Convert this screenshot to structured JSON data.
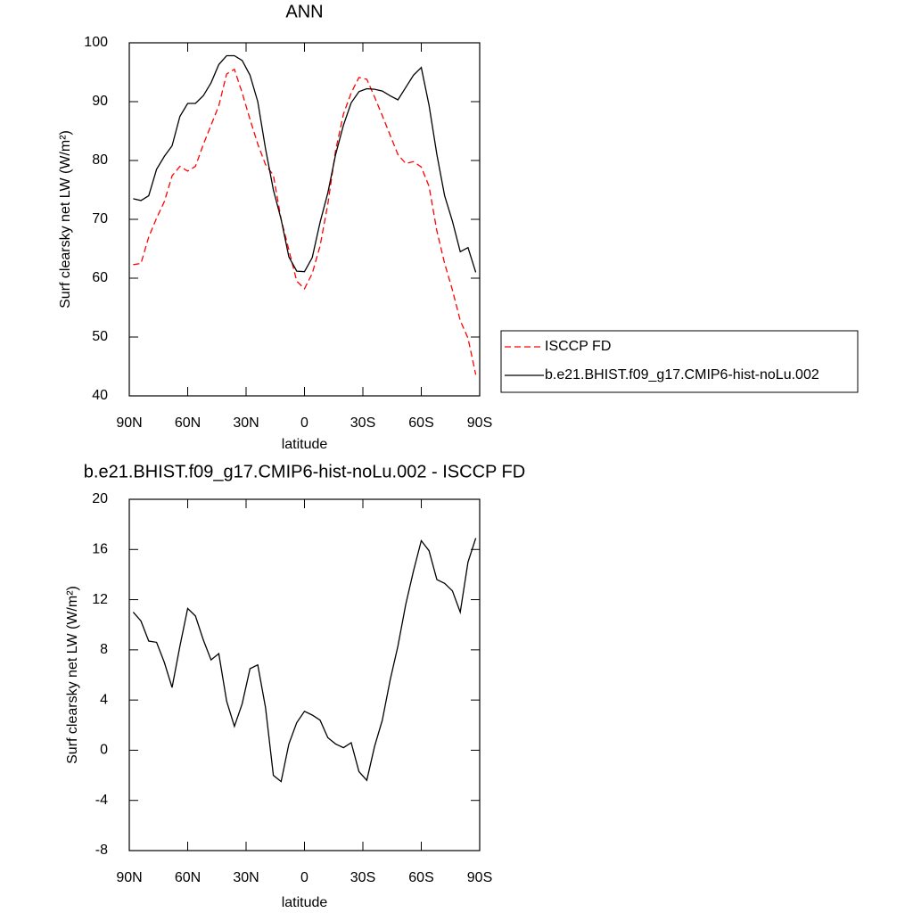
{
  "chart_data": [
    {
      "type": "line",
      "title": "ANN",
      "xlabel": "latitude",
      "ylabel": "Surf clearsky net LW (W/m²)",
      "x": [
        88,
        84,
        80,
        76,
        72,
        68,
        64,
        60,
        56,
        52,
        48,
        44,
        40,
        36,
        32,
        28,
        24,
        20,
        16,
        12,
        8,
        4,
        0,
        -4,
        -8,
        -12,
        -16,
        -20,
        -24,
        -28,
        -32,
        -36,
        -40,
        -44,
        -48,
        -52,
        -56,
        -60,
        -64,
        -68,
        -72,
        -76,
        -80,
        -84,
        -88
      ],
      "xlim": [
        90,
        -90
      ],
      "xticks": [
        {
          "value": 90,
          "label": "90N"
        },
        {
          "value": 60,
          "label": "60N"
        },
        {
          "value": 30,
          "label": "30N"
        },
        0,
        {
          "value": -30,
          "label": "30S"
        },
        {
          "value": -60,
          "label": "60S"
        },
        {
          "value": -90,
          "label": "90S"
        }
      ],
      "ylim": [
        40,
        100
      ],
      "yticks": [
        40,
        50,
        60,
        70,
        80,
        90,
        100
      ],
      "legend": "right",
      "series": [
        {
          "name": "ISCCP FD",
          "color": "#ff0000",
          "dash": true,
          "values": [
            62.3,
            62.5,
            67,
            70.2,
            73,
            77.4,
            79,
            78.2,
            79,
            82.7,
            86,
            89.3,
            94.7,
            95.5,
            91.5,
            87,
            82.8,
            79.3,
            77.5,
            70,
            64.8,
            59.5,
            58.2,
            60.8,
            65.5,
            72.6,
            81.7,
            87.9,
            91.5,
            94.1,
            93.8,
            90.8,
            87.6,
            84.3,
            81,
            79.5,
            79.8,
            78.9,
            75.6,
            68,
            62.5,
            58,
            52.8,
            49.8,
            43.6
          ]
        },
        {
          "name": "b.e21.BHIST.f09_g17.CMIP6-hist-noLu.002",
          "color": "#000000",
          "dash": false,
          "values": [
            73.5,
            73.2,
            74,
            78.5,
            80.7,
            82.5,
            87.5,
            89.7,
            89.7,
            91,
            93.2,
            96.3,
            97.8,
            97.8,
            97,
            94.5,
            90,
            82,
            75,
            70,
            63.6,
            61.2,
            61.1,
            63.5,
            69.5,
            74.5,
            81,
            86,
            89.8,
            91.7,
            92.2,
            92.1,
            91.8,
            91,
            90.3,
            92.4,
            94.5,
            95.8,
            89.4,
            81,
            74,
            69.7,
            64.5,
            65.2,
            61
          ]
        }
      ]
    },
    {
      "type": "line",
      "title": "b.e21.BHIST.f09_g17.CMIP6-hist-noLu.002 - ISCCP FD",
      "xlabel": "latitude",
      "ylabel": "Surf clearsky net LW (W/m²)",
      "x": [
        88,
        84,
        80,
        76,
        72,
        68,
        64,
        60,
        56,
        52,
        48,
        44,
        40,
        36,
        32,
        28,
        24,
        20,
        16,
        12,
        8,
        4,
        0,
        -4,
        -8,
        -12,
        -16,
        -20,
        -24,
        -28,
        -32,
        -36,
        -40,
        -44,
        -48,
        -52,
        -56,
        -60,
        -64,
        -68,
        -72,
        -76,
        -80,
        -84,
        -88
      ],
      "xlim": [
        90,
        -90
      ],
      "xticks": [
        {
          "value": 90,
          "label": "90N"
        },
        {
          "value": 60,
          "label": "60N"
        },
        {
          "value": 30,
          "label": "30N"
        },
        0,
        {
          "value": -30,
          "label": "30S"
        },
        {
          "value": -60,
          "label": "60S"
        },
        {
          "value": -90,
          "label": "90S"
        }
      ],
      "ylim": [
        -8,
        20
      ],
      "yticks": [
        -8,
        -4,
        0,
        4,
        8,
        12,
        16,
        20
      ],
      "series": [
        {
          "color": "#000000",
          "dash": false,
          "values": [
            11.0,
            10.3,
            8.7,
            8.6,
            7.0,
            5.0,
            8.3,
            11.3,
            10.7,
            8.8,
            7.2,
            7.7,
            3.9,
            1.9,
            3.7,
            6.5,
            6.8,
            3.4,
            -2.0,
            -2.5,
            0.5,
            2.2,
            3.1,
            2.8,
            2.4,
            1.0,
            0.5,
            0.2,
            0.6,
            -1.7,
            -2.4,
            0.3,
            2.4,
            5.6,
            8.3,
            11.6,
            14.3,
            16.7,
            15.9,
            13.6,
            13.3,
            12.7,
            11.0,
            15,
            16.9
          ]
        }
      ]
    }
  ]
}
